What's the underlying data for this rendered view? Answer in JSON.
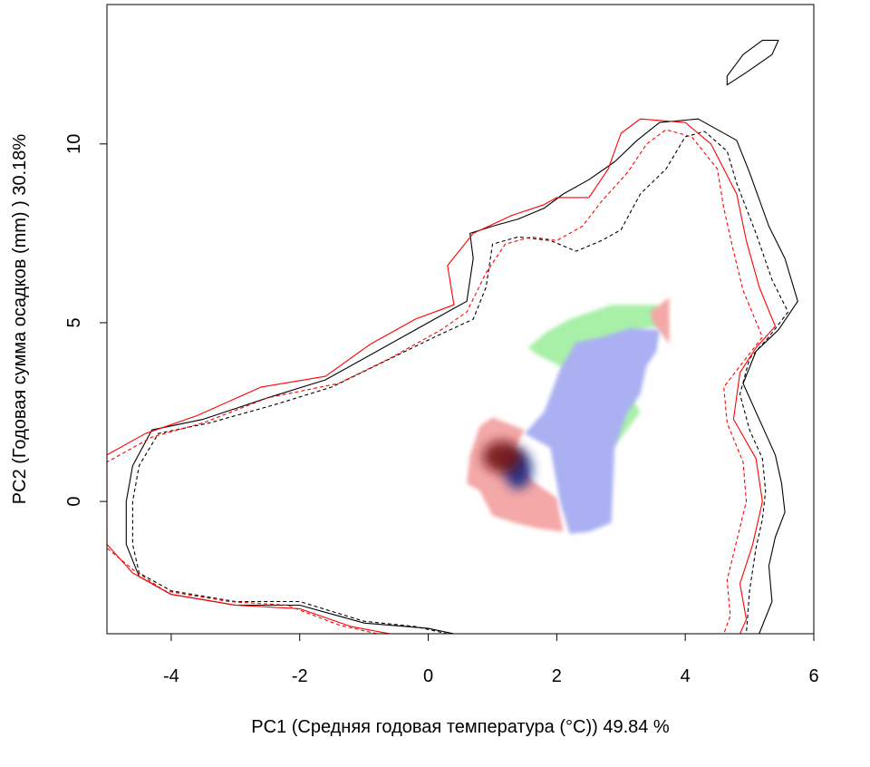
{
  "chart_data": {
    "type": "heatmap",
    "title": "",
    "xlabel": "PC1 (Средняя годовая температура (°C)) 49.84 %",
    "ylabel": "PC2 (Годовая сумма осадков  (mm) ) 30.18%",
    "xlim": [
      -5,
      6
    ],
    "ylim": [
      -3.7,
      13.9
    ],
    "x_ticks": [
      -4,
      -2,
      0,
      2,
      4,
      6
    ],
    "y_ticks": [
      0,
      5,
      10
    ],
    "x_tick_labels": [
      "-4",
      "-2",
      "0",
      "2",
      "4",
      "6"
    ],
    "y_tick_labels": [
      "0",
      "5",
      "10"
    ],
    "grid": false,
    "legend": "none",
    "colors": {
      "expansion": "#a8f0a8",
      "stable": "#aab0f2",
      "stable_dense": "#102080",
      "unfilling": "#f4a8a8",
      "unfilling_dense": "#6a0c0c",
      "contour_native": "#000000",
      "contour_invaded": "#ff0000"
    },
    "regions": {
      "expansion": [
        [
          2.9,
          1.55
        ],
        [
          3.3,
          2.5
        ],
        [
          3.0,
          3.4
        ],
        [
          2.6,
          3.85
        ],
        [
          2.15,
          3.7
        ],
        [
          1.7,
          4.1
        ],
        [
          1.55,
          4.3
        ],
        [
          1.85,
          4.75
        ],
        [
          2.2,
          5.1
        ],
        [
          2.85,
          5.5
        ],
        [
          3.55,
          5.5
        ],
        [
          3.75,
          4.9
        ],
        [
          3.4,
          4.85
        ],
        [
          3.0,
          4.6
        ],
        [
          2.7,
          4.45
        ]
      ],
      "stable": [
        [
          1.5,
          1.9
        ],
        [
          1.9,
          1.5
        ],
        [
          2.05,
          0.0
        ],
        [
          2.2,
          -0.9
        ],
        [
          2.5,
          -0.85
        ],
        [
          2.85,
          -0.6
        ],
        [
          2.9,
          1.5
        ],
        [
          3.1,
          2.5
        ],
        [
          3.3,
          3.0
        ],
        [
          3.4,
          3.8
        ],
        [
          3.55,
          4.2
        ],
        [
          3.6,
          4.8
        ],
        [
          3.15,
          4.85
        ],
        [
          2.7,
          4.6
        ],
        [
          2.3,
          4.45
        ],
        [
          2.05,
          3.7
        ],
        [
          1.95,
          3.2
        ],
        [
          1.8,
          2.5
        ]
      ],
      "unfilling": [
        [
          0.65,
          1.3
        ],
        [
          0.8,
          2.1
        ],
        [
          1.0,
          2.35
        ],
        [
          1.5,
          2.0
        ],
        [
          1.35,
          1.5
        ],
        [
          1.6,
          0.6
        ],
        [
          2.0,
          0.1
        ],
        [
          2.1,
          -0.85
        ],
        [
          1.7,
          -0.75
        ],
        [
          1.35,
          -0.6
        ],
        [
          1.0,
          -0.4
        ],
        [
          0.8,
          0.3
        ],
        [
          0.6,
          0.5
        ]
      ],
      "unfilling_top": [
        [
          3.5,
          5.0
        ],
        [
          3.75,
          4.4
        ],
        [
          3.75,
          5.7
        ],
        [
          3.6,
          5.5
        ],
        [
          3.45,
          5.3
        ]
      ]
    },
    "density_peaks": [
      {
        "name": "stable",
        "x": 1.4,
        "y": 0.9,
        "rx": 0.22,
        "ry": 0.55
      },
      {
        "name": "unfilling",
        "x": 1.15,
        "y": 1.25,
        "rx": 0.3,
        "ry": 0.45
      }
    ],
    "contours": [
      {
        "name": "",
        "color": "#000000",
        "dash": "solid",
        "points": [
          [
            0.4,
            -3.7
          ],
          [
            0.0,
            -3.55
          ],
          [
            -1.0,
            -3.4
          ],
          [
            -2.0,
            -2.9
          ],
          [
            -3.0,
            -2.9
          ],
          [
            -4.0,
            -2.6
          ],
          [
            -4.5,
            -2.1
          ],
          [
            -4.7,
            -1.2
          ],
          [
            -4.7,
            0.0
          ],
          [
            -4.6,
            1.0
          ],
          [
            -4.3,
            2.0
          ],
          [
            -3.5,
            2.3
          ],
          [
            -2.5,
            2.9
          ],
          [
            -1.6,
            3.4
          ],
          [
            -0.8,
            4.2
          ],
          [
            0.0,
            5.0
          ],
          [
            0.6,
            5.6
          ],
          [
            0.7,
            6.8
          ],
          [
            0.65,
            7.5
          ],
          [
            1.0,
            7.7
          ],
          [
            1.4,
            7.9
          ],
          [
            1.8,
            8.2
          ],
          [
            2.1,
            8.6
          ],
          [
            2.5,
            9.0
          ],
          [
            2.9,
            9.5
          ],
          [
            3.25,
            10.1
          ],
          [
            3.6,
            10.6
          ],
          [
            4.2,
            10.7
          ],
          [
            4.8,
            10.1
          ],
          [
            5.0,
            9.2
          ],
          [
            5.3,
            7.7
          ],
          [
            5.55,
            6.8
          ],
          [
            5.75,
            5.6
          ],
          [
            5.45,
            4.8
          ],
          [
            5.1,
            4.2
          ],
          [
            4.9,
            3.3
          ],
          [
            5.2,
            2.1
          ],
          [
            5.4,
            1.3
          ],
          [
            5.5,
            0.5
          ],
          [
            5.55,
            -0.3
          ],
          [
            5.4,
            -1.0
          ],
          [
            5.3,
            -1.8
          ],
          [
            5.35,
            -2.8
          ],
          [
            5.15,
            -3.7
          ]
        ]
      },
      {
        "name": "",
        "color": "#000000",
        "dash": "dashed",
        "points": [
          [
            0.3,
            -3.7
          ],
          [
            -0.2,
            -3.5
          ],
          [
            -1.0,
            -3.35
          ],
          [
            -2.0,
            -2.8
          ],
          [
            -3.0,
            -2.8
          ],
          [
            -4.0,
            -2.5
          ],
          [
            -4.5,
            -2.0
          ],
          [
            -4.6,
            -1.2
          ],
          [
            -4.6,
            0.0
          ],
          [
            -4.5,
            1.0
          ],
          [
            -4.2,
            1.9
          ],
          [
            -3.4,
            2.2
          ],
          [
            -2.4,
            2.7
          ],
          [
            -1.5,
            3.2
          ],
          [
            -0.7,
            3.9
          ],
          [
            0.1,
            4.6
          ],
          [
            0.7,
            5.1
          ],
          [
            0.9,
            6.0
          ],
          [
            1.0,
            7.2
          ],
          [
            1.4,
            7.4
          ],
          [
            1.9,
            7.3
          ],
          [
            2.3,
            7.0
          ],
          [
            2.7,
            7.3
          ],
          [
            3.0,
            7.6
          ],
          [
            3.3,
            8.6
          ],
          [
            3.7,
            9.3
          ],
          [
            4.0,
            10.2
          ],
          [
            4.3,
            10.35
          ],
          [
            4.65,
            9.8
          ],
          [
            4.8,
            8.9
          ],
          [
            5.1,
            7.5
          ],
          [
            5.35,
            6.2
          ],
          [
            5.6,
            5.3
          ],
          [
            5.3,
            4.6
          ],
          [
            5.0,
            4.0
          ],
          [
            4.85,
            3.0
          ],
          [
            5.0,
            2.0
          ],
          [
            5.2,
            1.2
          ],
          [
            5.25,
            0.3
          ],
          [
            5.2,
            -0.5
          ],
          [
            5.1,
            -1.3
          ],
          [
            5.0,
            -2.5
          ],
          [
            4.95,
            -3.7
          ]
        ]
      },
      {
        "name": "",
        "color": "#ff0000",
        "dash": "solid",
        "points": [
          [
            -0.6,
            -3.7
          ],
          [
            -1.2,
            -3.5
          ],
          [
            -2.0,
            -3.0
          ],
          [
            -3.0,
            -2.9
          ],
          [
            -4.0,
            -2.6
          ],
          [
            -4.6,
            -2.0
          ],
          [
            -5.0,
            -1.2
          ],
          [
            -5.0,
            1.3
          ],
          [
            -4.4,
            1.9
          ],
          [
            -3.6,
            2.4
          ],
          [
            -2.6,
            3.2
          ],
          [
            -1.6,
            3.5
          ],
          [
            -0.9,
            4.4
          ],
          [
            -0.2,
            5.1
          ],
          [
            0.4,
            5.5
          ],
          [
            0.3,
            6.6
          ],
          [
            0.7,
            7.5
          ],
          [
            1.3,
            8.0
          ],
          [
            1.8,
            8.3
          ],
          [
            2.0,
            8.5
          ],
          [
            2.5,
            8.5
          ],
          [
            2.8,
            9.3
          ],
          [
            3.0,
            10.3
          ],
          [
            3.3,
            10.7
          ],
          [
            4.0,
            10.6
          ],
          [
            4.4,
            10.0
          ],
          [
            4.8,
            8.6
          ],
          [
            4.95,
            7.3
          ],
          [
            5.15,
            6.0
          ],
          [
            5.4,
            4.9
          ],
          [
            5.1,
            4.3
          ],
          [
            4.85,
            3.6
          ],
          [
            4.75,
            2.3
          ],
          [
            5.1,
            1.2
          ],
          [
            5.2,
            0.0
          ],
          [
            5.05,
            -1.2
          ],
          [
            4.85,
            -2.3
          ],
          [
            4.95,
            -3.3
          ],
          [
            4.85,
            -3.7
          ]
        ]
      },
      {
        "name": "",
        "color": "#ff0000",
        "dash": "dashed",
        "points": [
          [
            -0.8,
            -3.7
          ],
          [
            -1.4,
            -3.45
          ],
          [
            -2.2,
            -2.9
          ],
          [
            -3.1,
            -2.8
          ],
          [
            -4.1,
            -2.5
          ],
          [
            -4.6,
            -1.9
          ],
          [
            -5.0,
            -1.3
          ],
          [
            -5.0,
            1.1
          ],
          [
            -4.3,
            1.8
          ],
          [
            -3.5,
            2.2
          ],
          [
            -2.5,
            2.9
          ],
          [
            -1.4,
            3.3
          ],
          [
            -0.6,
            4.0
          ],
          [
            0.2,
            4.8
          ],
          [
            0.6,
            5.3
          ],
          [
            0.9,
            6.4
          ],
          [
            1.2,
            7.2
          ],
          [
            1.6,
            7.4
          ],
          [
            2.0,
            7.3
          ],
          [
            2.4,
            7.7
          ],
          [
            2.7,
            8.4
          ],
          [
            3.1,
            9.2
          ],
          [
            3.4,
            10.0
          ],
          [
            3.7,
            10.4
          ],
          [
            4.1,
            10.2
          ],
          [
            4.5,
            9.3
          ],
          [
            4.6,
            8.2
          ],
          [
            4.75,
            7.0
          ],
          [
            4.9,
            5.9
          ],
          [
            5.2,
            4.6
          ],
          [
            4.9,
            3.9
          ],
          [
            4.6,
            3.2
          ],
          [
            4.65,
            2.2
          ],
          [
            4.9,
            1.1
          ],
          [
            4.95,
            0.0
          ],
          [
            4.8,
            -1.1
          ],
          [
            4.65,
            -2.2
          ],
          [
            4.7,
            -3.2
          ],
          [
            4.6,
            -3.7
          ]
        ]
      },
      {
        "name": "",
        "color": "#000000",
        "dash": "solid",
        "points": [
          [
            4.65,
            11.9
          ],
          [
            4.9,
            12.5
          ],
          [
            5.2,
            12.9
          ],
          [
            5.45,
            12.9
          ],
          [
            5.35,
            12.5
          ],
          [
            4.95,
            12.0
          ],
          [
            4.65,
            11.65
          ],
          [
            4.65,
            11.9
          ]
        ]
      }
    ]
  }
}
